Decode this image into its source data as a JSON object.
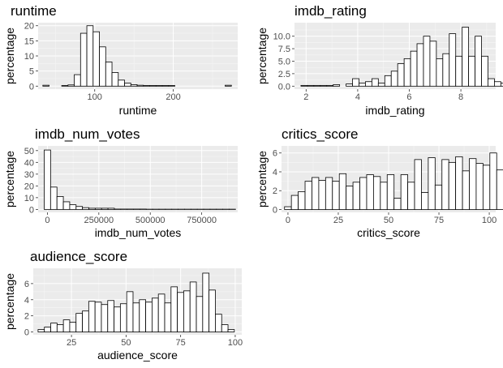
{
  "chart_data": [
    {
      "type": "bar",
      "title": "runtime",
      "xlabel": "runtime",
      "ylabel": "percentage",
      "xlim": [
        28,
        282
      ],
      "ylim": [
        -1,
        21
      ],
      "xticks": [
        100,
        200
      ],
      "yticks": [
        0,
        5,
        10,
        15,
        20
      ],
      "ytick_labels": [
        "0",
        "5",
        "10",
        "15",
        "20"
      ],
      "grid": true,
      "bin_start": 34,
      "bin_width": 8,
      "values": [
        0.3,
        0.0,
        0.0,
        0.2,
        0.4,
        3.8,
        17.5,
        20.0,
        18.0,
        13.0,
        8.0,
        4.5,
        2.0,
        1.0,
        0.5,
        0.3,
        0.2,
        0.2,
        0.2,
        0.2,
        0.2,
        0.0,
        0.0,
        0.0,
        0.0,
        0.0,
        0.0,
        0.0,
        0.0,
        0.3
      ]
    },
    {
      "type": "bar",
      "title": "imdb_rating",
      "xlabel": "imdb_rating",
      "ylabel": "percentage",
      "xlim": [
        1.55,
        9.35
      ],
      "ylim": [
        -0.6,
        12.7
      ],
      "xticks": [
        2,
        4,
        6,
        8
      ],
      "yticks": [
        0,
        2.5,
        5,
        7.5,
        10
      ],
      "ytick_labels": [
        "0.0",
        "2.5",
        "5.0",
        "7.5",
        "10.0"
      ],
      "grid": true,
      "bin_start": 1.8,
      "bin_width": 0.25,
      "values": [
        0.15,
        0.15,
        0.15,
        0.15,
        0.15,
        0.3,
        0.0,
        0.45,
        1.5,
        0.6,
        0.9,
        1.5,
        0.6,
        2.1,
        3.0,
        4.5,
        5.5,
        7.0,
        8.5,
        10.0,
        9.0,
        5.5,
        6.5,
        10.5,
        6.0,
        11.8,
        6.0,
        10.0,
        6.0,
        1.5,
        0.9,
        0.6,
        0.3,
        0.15
      ]
    },
    {
      "type": "bar",
      "title": "imdb_num_votes",
      "xlabel": "imdb_num_votes",
      "ylabel": "percentage",
      "xlim": [
        -45000,
        925000
      ],
      "ylim": [
        -2.5,
        54
      ],
      "xticks": [
        0,
        250000,
        500000,
        750000
      ],
      "xtick_labels": [
        "0",
        "250000",
        "500000",
        "750000"
      ],
      "yticks": [
        0,
        10,
        20,
        30,
        40,
        50
      ],
      "ytick_labels": [
        "0",
        "10",
        "20",
        "30",
        "40",
        "50"
      ],
      "grid": true,
      "bin_start": -15500,
      "bin_width": 31000,
      "values": [
        50.5,
        19.0,
        11.0,
        6.5,
        4.0,
        2.5,
        1.5,
        1.0,
        1.0,
        1.0,
        1.0,
        0.3,
        0.3,
        0.3,
        0.3,
        0.3,
        0.2,
        0.2,
        0.2,
        0.2,
        0.2,
        0.2,
        0.2,
        0.2,
        0.2,
        0.2,
        0.2,
        0.2,
        0.2,
        0.2
      ]
    },
    {
      "type": "bar",
      "title": "critics_score",
      "xlabel": "critics_score",
      "ylabel": "percentage",
      "xlim": [
        -3.2,
        103.2
      ],
      "ylim": [
        -0.3,
        6.75
      ],
      "xticks": [
        0,
        25,
        50,
        75,
        100
      ],
      "yticks": [
        0,
        2,
        4,
        6
      ],
      "ytick_labels": [
        "0",
        "2",
        "4",
        "6"
      ],
      "grid": true,
      "bin_start": -1.7,
      "bin_width": 3.4,
      "values": [
        0.3,
        1.5,
        1.9,
        3.0,
        3.4,
        3.1,
        3.4,
        3.0,
        3.8,
        2.5,
        2.9,
        3.4,
        3.7,
        3.5,
        2.9,
        3.7,
        1.2,
        3.7,
        2.9,
        5.3,
        1.8,
        5.5,
        2.6,
        5.3,
        5.0,
        5.6,
        4.1,
        5.4,
        4.9,
        4.7,
        6.0,
        4.2,
        4.2
      ]
    },
    {
      "type": "bar",
      "title": "audience_score",
      "xlabel": "audience_score",
      "ylabel": "percentage",
      "xlim": [
        7.5,
        103
      ],
      "ylim": [
        -0.35,
        7.9
      ],
      "xticks": [
        25,
        50,
        75,
        100
      ],
      "yticks": [
        0,
        2,
        4,
        6
      ],
      "ytick_labels": [
        "0",
        "2",
        "4",
        "6"
      ],
      "grid": true,
      "bin_start": 9.7,
      "bin_width": 2.9,
      "values": [
        0.3,
        0.6,
        1.1,
        0.9,
        1.5,
        1.2,
        2.3,
        2.6,
        3.8,
        3.7,
        3.4,
        3.9,
        3.1,
        3.5,
        5.0,
        3.6,
        4.0,
        3.7,
        4.2,
        4.7,
        3.6,
        5.6,
        4.9,
        5.1,
        6.2,
        4.4,
        7.3,
        5.2,
        2.2,
        0.9,
        0.3
      ]
    }
  ]
}
